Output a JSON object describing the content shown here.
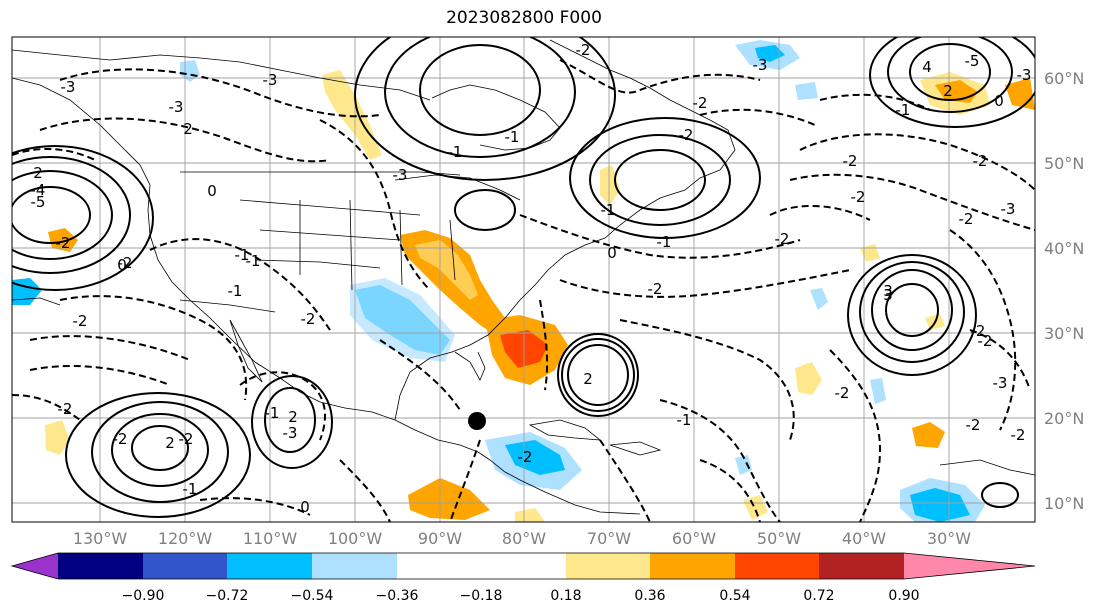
{
  "title": "2023082800 F000",
  "lat_labels": [
    "60°N",
    "50°N",
    "40°N",
    "30°N",
    "20°N",
    "10°N"
  ],
  "lon_labels": [
    "130°W",
    "120°W",
    "110°W",
    "100°W",
    "90°W",
    "80°W",
    "70°W",
    "60°W",
    "50°W",
    "40°W",
    "30°W"
  ],
  "colorbar": {
    "ticks": [
      "−0.90",
      "−0.72",
      "−0.54",
      "−0.36",
      "−0.18",
      "0.18",
      "0.36",
      "0.54",
      "0.72",
      "0.90"
    ],
    "colors": [
      "#9933cc",
      "#000080",
      "#3355cc",
      "#00bfff",
      "#aee0ff",
      "#ffffff",
      "#ffe88c",
      "#ffa500",
      "#ff4500",
      "#b22222",
      "#ff88aa"
    ]
  },
  "contour_labels": [
    "-3",
    "2",
    "-3",
    "2",
    "-2",
    "-2",
    "-5",
    "-4",
    "-3",
    "0",
    "-1",
    "-2",
    "-3",
    "-2",
    "-2",
    "-1",
    "-1",
    "2",
    "2",
    "-2",
    "-2",
    "-1",
    "-2",
    "-1",
    "-1",
    "0",
    "-1",
    "0",
    "-2",
    "-1",
    "3",
    "-2",
    "-3",
    "-2",
    "-2",
    "-3",
    "-2",
    "-1",
    "-2",
    "-2",
    "-2",
    "-3",
    "0",
    "-2",
    "-3",
    "2",
    "-2",
    "2",
    "-2",
    "4",
    "3",
    "-5",
    "-1",
    "-2",
    "-2",
    "0",
    "-1",
    "-2",
    "-3"
  ],
  "marker": "storm-center-dot"
}
